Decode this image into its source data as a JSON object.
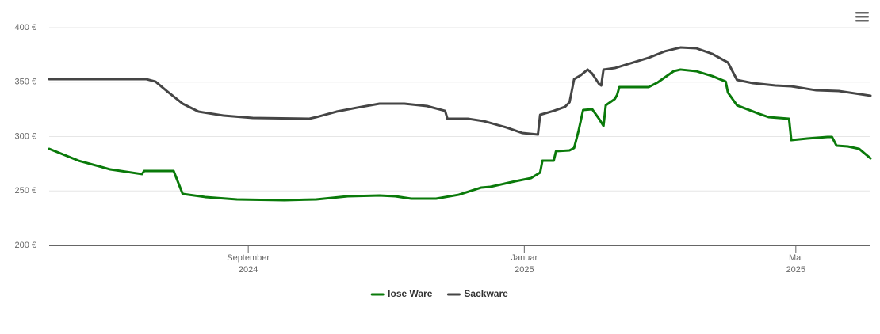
{
  "chart_data": {
    "type": "line",
    "xlim": [
      "2024-06-05",
      "2025-06-03"
    ],
    "xticks": [
      {
        "value": "2024-09-01",
        "label": "September",
        "year": "2024"
      },
      {
        "value": "2025-01-01",
        "label": "Januar",
        "year": "2025"
      },
      {
        "value": "2025-05-01",
        "label": "Mai",
        "year": "2025"
      }
    ],
    "ylim": [
      200,
      400
    ],
    "yticks": [
      {
        "value": 200,
        "label": "200 €"
      },
      {
        "value": 250,
        "label": "250 €"
      },
      {
        "value": 300,
        "label": "300 €"
      },
      {
        "value": 350,
        "label": "350 €"
      },
      {
        "value": 400,
        "label": "400 €"
      }
    ],
    "grid": true,
    "legend": "bottom",
    "series": [
      {
        "name": "lose Ware",
        "color": "#0a7a0a",
        "x": [
          "2024-06-05",
          "2024-06-18",
          "2024-07-02",
          "2024-07-16",
          "2024-07-17",
          "2024-07-30",
          "2024-08-03",
          "2024-08-13",
          "2024-08-27",
          "2024-09-17",
          "2024-10-01",
          "2024-10-15",
          "2024-10-29",
          "2024-11-05",
          "2024-11-12",
          "2024-11-23",
          "2024-12-03",
          "2024-12-13",
          "2024-12-17",
          "2024-12-28",
          "2025-01-04",
          "2025-01-08",
          "2025-01-09",
          "2025-01-14",
          "2025-01-15",
          "2025-01-21",
          "2025-01-23",
          "2025-01-25",
          "2025-01-27",
          "2025-01-31",
          "2025-02-03",
          "2025-02-05",
          "2025-02-06",
          "2025-02-10",
          "2025-02-11",
          "2025-02-12",
          "2025-02-25",
          "2025-03-01",
          "2025-03-08",
          "2025-03-11",
          "2025-03-18",
          "2025-03-25",
          "2025-03-31",
          "2025-04-01",
          "2025-04-05",
          "2025-04-15",
          "2025-04-19",
          "2025-04-28",
          "2025-04-29",
          "2025-05-06",
          "2025-05-15",
          "2025-05-17",
          "2025-05-19",
          "2025-05-24",
          "2025-05-29",
          "2025-06-03"
        ],
        "values": [
          288.7,
          277.8,
          269.8,
          265.5,
          268.4,
          268.4,
          247.3,
          244.4,
          242.2,
          241.5,
          242.2,
          245.1,
          245.8,
          245.1,
          242.9,
          242.9,
          246.5,
          253.1,
          253.8,
          258.9,
          261.8,
          266.9,
          277.8,
          277.8,
          286.5,
          287.3,
          289.5,
          305.5,
          324.4,
          325.1,
          316.4,
          309.8,
          328.7,
          334.5,
          338.2,
          345.5,
          345.5,
          349.8,
          360.0,
          361.5,
          360.0,
          355.6,
          350.5,
          340.4,
          328.7,
          320.7,
          317.8,
          316.4,
          296.7,
          298.2,
          299.6,
          299.6,
          291.6,
          290.9,
          288.7,
          280.0
        ]
      },
      {
        "name": "Sackware",
        "color": "#454545",
        "x": [
          "2024-06-05",
          "2024-07-18",
          "2024-07-22",
          "2024-07-27",
          "2024-08-03",
          "2024-08-10",
          "2024-08-21",
          "2024-09-03",
          "2024-09-28",
          "2024-10-01",
          "2024-10-10",
          "2024-10-19",
          "2024-10-29",
          "2024-11-09",
          "2024-11-19",
          "2024-11-27",
          "2024-11-28",
          "2024-12-07",
          "2024-12-14",
          "2024-12-24",
          "2024-12-31",
          "2025-01-07",
          "2025-01-08",
          "2025-01-14",
          "2025-01-19",
          "2025-01-21",
          "2025-01-23",
          "2025-01-26",
          "2025-01-29",
          "2025-01-31",
          "2025-02-03",
          "2025-02-04",
          "2025-02-05",
          "2025-02-10",
          "2025-02-17",
          "2025-02-25",
          "2025-03-04",
          "2025-03-11",
          "2025-03-18",
          "2025-03-25",
          "2025-04-01",
          "2025-04-03",
          "2025-04-05",
          "2025-04-12",
          "2025-04-22",
          "2025-04-29",
          "2025-05-10",
          "2025-05-20",
          "2025-06-03"
        ],
        "values": [
          352.7,
          352.7,
          350.5,
          341.8,
          330.2,
          322.9,
          319.3,
          317.1,
          316.4,
          317.8,
          322.9,
          326.5,
          330.2,
          330.2,
          328.0,
          323.6,
          316.4,
          316.4,
          314.2,
          308.4,
          303.3,
          301.8,
          320.0,
          323.6,
          327.3,
          331.6,
          352.7,
          356.4,
          361.5,
          357.8,
          348.4,
          346.9,
          361.5,
          362.9,
          367.3,
          372.4,
          378.2,
          381.8,
          381.1,
          376.0,
          368.0,
          360.0,
          352.0,
          349.1,
          346.9,
          346.2,
          342.5,
          341.8,
          337.5
        ]
      }
    ]
  }
}
